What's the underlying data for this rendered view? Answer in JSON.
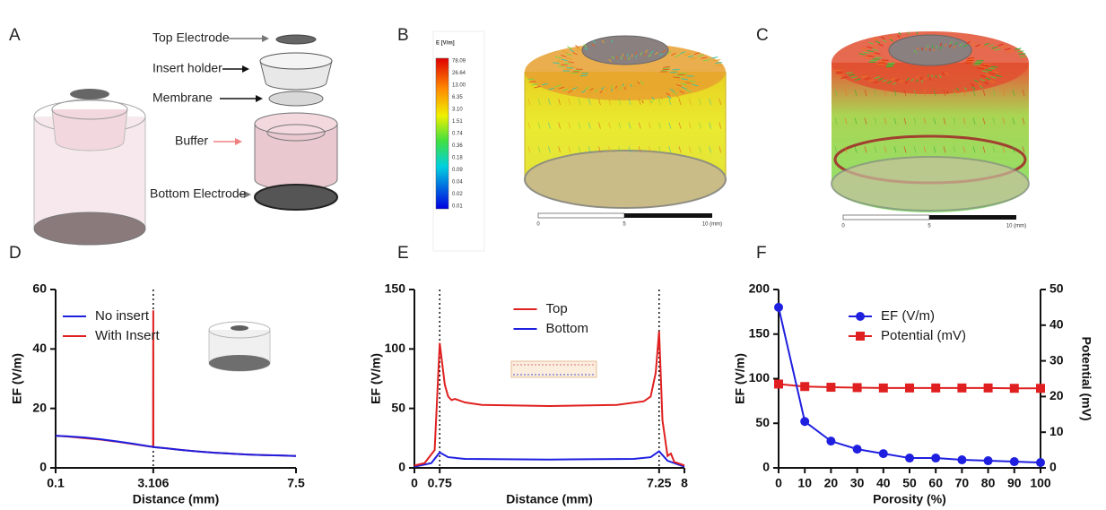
{
  "panel_labels": [
    "A",
    "B",
    "C",
    "D",
    "E",
    "F"
  ],
  "panel_a": {
    "labels": [
      "Top Electrode",
      "Insert holder",
      "Membrane",
      "Buffer",
      "Bottom Electrode"
    ]
  },
  "panel_b": {
    "colorbar_title": "E [V/m]",
    "colorbar_labels": [
      "78.09",
      "26.64",
      "13.00",
      "6.35",
      "3.10",
      "1.51",
      "0.74",
      "0.36",
      "0.18",
      "0.09",
      "0.04",
      "0.02",
      "0.01"
    ],
    "scale_labels": [
      "0",
      "5",
      "10 (mm)"
    ]
  },
  "panel_c": {
    "scale_labels": [
      "0",
      "5",
      "10 (mm)"
    ]
  },
  "chart_data": [
    {
      "type": "line",
      "xlabel": "Distance (mm)",
      "ylabel": "EF (V/m)",
      "xlim": [
        0.1,
        7.5
      ],
      "xticks": [
        0.1,
        3.106,
        7.5
      ],
      "ylim": [
        0,
        60
      ],
      "yticks": [
        0,
        20,
        40,
        60
      ],
      "vlines": [
        3.106
      ],
      "legend": "upper left",
      "x": [
        0.1,
        0.5,
        1,
        1.5,
        2,
        2.5,
        3,
        3.1,
        3.106,
        3.11,
        3.5,
        4,
        4.5,
        5,
        5.5,
        6,
        6.5,
        7,
        7.5
      ],
      "series": [
        {
          "name": "No insert",
          "color": "#1f1fe0",
          "values": [
            10.8,
            10.6,
            10.2,
            9.6,
            8.9,
            8.1,
            7.2,
            7.1,
            7.1,
            7.0,
            6.6,
            6.0,
            5.5,
            5.1,
            4.8,
            4.5,
            4.3,
            4.2,
            4.0
          ]
        },
        {
          "name": "With Insert",
          "color": "#e02020",
          "values": [
            10.8,
            10.5,
            10.0,
            9.5,
            8.8,
            8.0,
            7.2,
            7.1,
            53,
            7.0,
            6.6,
            6.0,
            5.5,
            5.1,
            4.8,
            4.5,
            4.3,
            4.2,
            4.0
          ]
        }
      ]
    },
    {
      "type": "line",
      "xlabel": "Distance (mm)",
      "ylabel": "EF (V/m)",
      "xlim": [
        0,
        8
      ],
      "xticks": [
        0,
        0.75,
        7.25,
        8
      ],
      "ylim": [
        0,
        150
      ],
      "yticks": [
        0,
        50,
        100,
        150
      ],
      "vlines": [
        0.75,
        7.25
      ],
      "legend": "upper center",
      "series": [
        {
          "name": "Top",
          "color": "#e02020",
          "x": [
            0,
            0.3,
            0.6,
            0.75,
            0.9,
            1.0,
            1.1,
            1.2,
            1.5,
            2,
            4,
            6,
            6.8,
            7.0,
            7.15,
            7.25,
            7.35,
            7.5,
            7.6,
            7.7,
            8
          ],
          "values": [
            2,
            4,
            15,
            105,
            70,
            60,
            57,
            58,
            55,
            53,
            52,
            53,
            56,
            60,
            80,
            115,
            40,
            10,
            12,
            5,
            2
          ]
        },
        {
          "name": "Bottom",
          "color": "#1f1fe0",
          "x": [
            0,
            0.5,
            0.75,
            1,
            1.5,
            4,
            6.5,
            7.0,
            7.25,
            7.5,
            8
          ],
          "values": [
            1,
            4,
            13,
            9,
            7.5,
            7,
            7.5,
            9,
            14,
            6,
            1
          ]
        }
      ]
    },
    {
      "type": "line",
      "xlabel": "Porosity (%)",
      "ylabel": "EF (V/m)",
      "y2label": "Potential (mV)",
      "xlim": [
        0,
        100
      ],
      "xticks": [
        0,
        10,
        20,
        30,
        40,
        50,
        60,
        70,
        80,
        90,
        100
      ],
      "ylim": [
        0,
        200
      ],
      "yticks": [
        0,
        50,
        100,
        150,
        200
      ],
      "y2lim": [
        0,
        50
      ],
      "y2ticks": [
        0,
        10,
        20,
        30,
        40,
        50
      ],
      "legend": "upper left",
      "x": [
        0,
        10,
        20,
        30,
        40,
        50,
        60,
        70,
        80,
        90,
        100
      ],
      "series": [
        {
          "name": "EF (V/m)",
          "color": "#1f1fe0",
          "marker": "circle",
          "values": [
            180,
            52,
            30,
            21,
            16,
            11,
            11,
            9,
            8,
            7,
            6
          ]
        },
        {
          "name": "Potential (mV)",
          "color": "#e02020",
          "marker": "square",
          "axis": "y2",
          "values": [
            23.5,
            22.8,
            22.6,
            22.5,
            22.4,
            22.4,
            22.4,
            22.4,
            22.4,
            22.3,
            22.3
          ]
        }
      ]
    }
  ]
}
